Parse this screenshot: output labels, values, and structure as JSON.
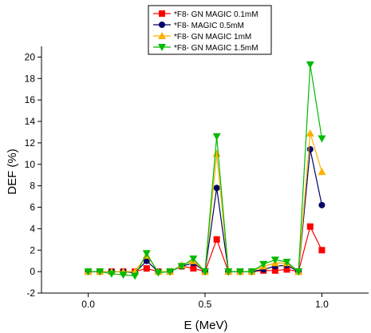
{
  "chart_data": {
    "type": "line",
    "title": "",
    "xlabel": "E (MeV)",
    "ylabel": "DEF (%)",
    "xlim": [
      -0.2,
      1.2
    ],
    "ylim": [
      -2,
      21
    ],
    "x_ticks": [
      "0.0",
      "0.5",
      "1.0"
    ],
    "y_ticks": [
      "-2",
      "0",
      "2",
      "4",
      "6",
      "8",
      "10",
      "12",
      "14",
      "16",
      "18",
      "20"
    ],
    "legend_position": "top-center",
    "x": [
      0.0,
      0.05,
      0.1,
      0.15,
      0.2,
      0.25,
      0.3,
      0.35,
      0.4,
      0.45,
      0.5,
      0.55,
      0.6,
      0.65,
      0.7,
      0.75,
      0.8,
      0.85,
      0.9,
      0.95,
      1.0
    ],
    "series": [
      {
        "name": "*F8- GN MAGIC 0.1mM",
        "color": "#ff0000",
        "marker": "square",
        "values": [
          0,
          0,
          0,
          0,
          0,
          0.3,
          0,
          0,
          0.5,
          0.3,
          0,
          3.0,
          0,
          0,
          0,
          0.1,
          0.1,
          0.2,
          0,
          4.2,
          2.0
        ]
      },
      {
        "name": "*F8- MAGIC 0.5mM",
        "color": "#000066",
        "marker": "circle",
        "values": [
          0,
          0,
          0,
          0,
          -0.1,
          1.0,
          0,
          0,
          0.5,
          0.8,
          0,
          7.8,
          0,
          0,
          0,
          0.2,
          0.5,
          0.6,
          0,
          11.4,
          6.2
        ]
      },
      {
        "name": "*F8- GN MAGIC 1mM",
        "color": "#ffb000",
        "marker": "triangle-up",
        "values": [
          0,
          0,
          0,
          0,
          0,
          1.5,
          0,
          0,
          0.6,
          1.0,
          0,
          11.0,
          0,
          0,
          0,
          0.5,
          0.8,
          0.8,
          0,
          12.9,
          9.3
        ]
      },
      {
        "name": "*F8- GN MAGIC 1.5mM",
        "color": "#00bb00",
        "marker": "triangle-down",
        "values": [
          0,
          0,
          -0.2,
          -0.3,
          -0.4,
          1.7,
          -0.1,
          0,
          0.5,
          1.2,
          0,
          12.6,
          0,
          0,
          0,
          0.7,
          1.1,
          0.9,
          0,
          19.3,
          12.4
        ]
      }
    ]
  }
}
